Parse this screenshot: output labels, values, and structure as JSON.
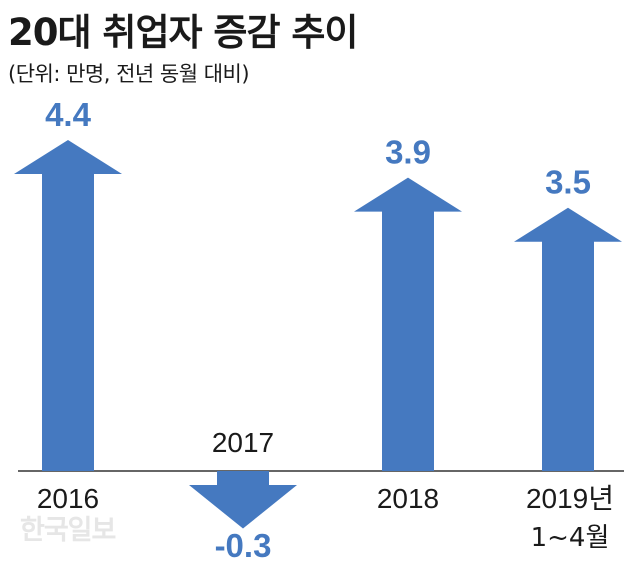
{
  "header": {
    "title": "20대 취업자 증감 추이",
    "subtitle": "(단위: 만명, 전년 동월 대비)"
  },
  "watermark": "한국일보",
  "colors": {
    "arrow": "#4579c0",
    "value_text": "#4579c0",
    "axis": "#333333",
    "text": "#1a1a1a"
  },
  "chart_data": {
    "type": "bar",
    "title": "20대 취업자 증감 추이",
    "unit_note": "(단위: 만명, 전년 동월 대비)",
    "categories": [
      "2016",
      "2017",
      "2018",
      "2019년 1~4월"
    ],
    "category_lines": [
      [
        "2016"
      ],
      [
        "2017"
      ],
      [
        "2018"
      ],
      [
        "2019년",
        "1~4월"
      ]
    ],
    "values": [
      4.4,
      -0.3,
      3.9,
      3.5
    ],
    "value_labels": [
      "4.4",
      "-0.3",
      "3.9",
      "3.5"
    ],
    "ylim": [
      -0.3,
      4.4
    ],
    "grid": false,
    "legend": "none"
  }
}
